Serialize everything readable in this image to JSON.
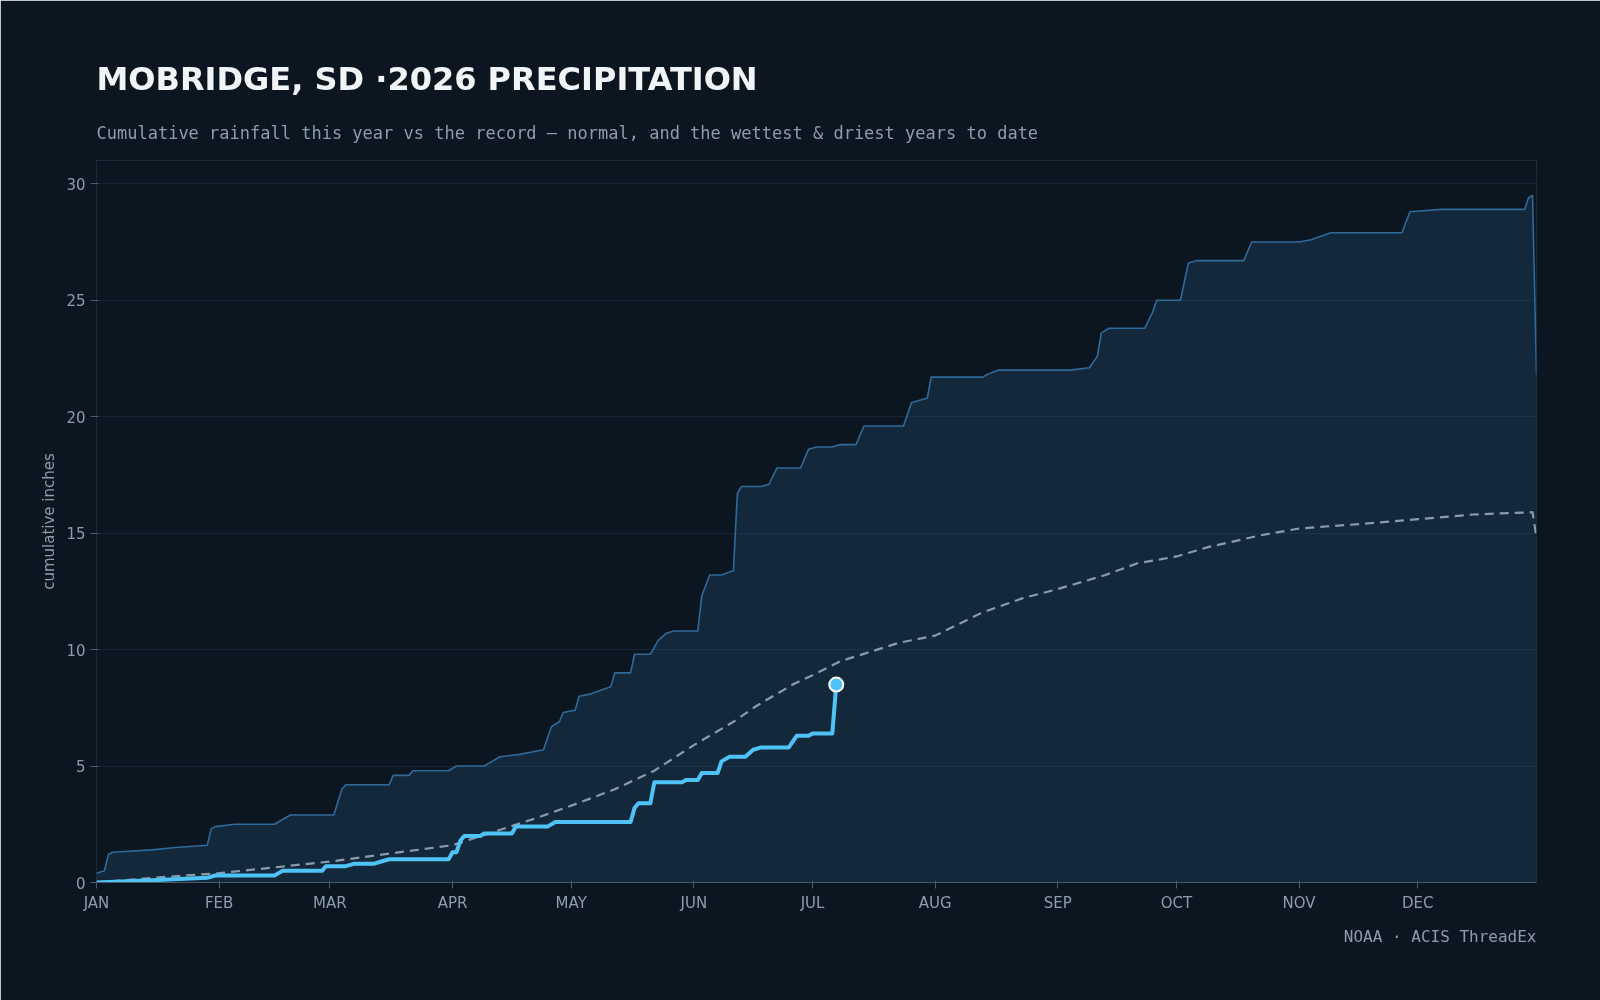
{
  "chart_data": {
    "type": "line",
    "title": "MOBRIDGE, SD ·2026 PRECIPITATION",
    "subtitle": "Cumulative rainfall this year vs the record — normal, and the wettest & driest years to date",
    "ylabel": "cumulative inches",
    "annotations": [
      "NOAA · ACIS ThreadEx"
    ],
    "xlim": [
      "2026-01-01",
      "2026-12-31"
    ],
    "xticks": [
      {
        "value": "2026-01-01",
        "label": "JAN"
      },
      {
        "value": "2026-02-01",
        "label": "FEB"
      },
      {
        "value": "2026-03-01",
        "label": "MAR"
      },
      {
        "value": "2026-04-01",
        "label": "APR"
      },
      {
        "value": "2026-05-01",
        "label": "MAY"
      },
      {
        "value": "2026-06-01",
        "label": "JUN"
      },
      {
        "value": "2026-07-01",
        "label": "JUL"
      },
      {
        "value": "2026-08-01",
        "label": "AUG"
      },
      {
        "value": "2026-09-01",
        "label": "SEP"
      },
      {
        "value": "2026-10-01",
        "label": "OCT"
      },
      {
        "value": "2026-11-01",
        "label": "NOV"
      },
      {
        "value": "2026-12-01",
        "label": "DEC"
      }
    ],
    "ylim": [
      0,
      31
    ],
    "yticks": [
      0,
      5,
      10,
      15,
      20,
      25,
      30
    ],
    "grid": "y",
    "series": [
      {
        "type": "area",
        "color": "#2e6a9a",
        "x": [
          "2026-01-01",
          "2026-01-03",
          "2026-01-04",
          "2026-01-05",
          "2026-01-15",
          "2026-01-21",
          "2026-01-29",
          "2026-01-30",
          "2026-01-31",
          "2026-02-05",
          "2026-02-15",
          "2026-02-19",
          "2026-03-02",
          "2026-03-04",
          "2026-03-05",
          "2026-03-16",
          "2026-03-17",
          "2026-03-21",
          "2026-03-22",
          "2026-03-31",
          "2026-04-02",
          "2026-04-09",
          "2026-04-11",
          "2026-04-13",
          "2026-04-18",
          "2026-04-21",
          "2026-04-24",
          "2026-04-26",
          "2026-04-28",
          "2026-04-29",
          "2026-05-02",
          "2026-05-03",
          "2026-05-06",
          "2026-05-11",
          "2026-05-12",
          "2026-05-16",
          "2026-05-17",
          "2026-05-21",
          "2026-05-23",
          "2026-05-25",
          "2026-05-27",
          "2026-06-02",
          "2026-06-03",
          "2026-06-05",
          "2026-06-08",
          "2026-06-11",
          "2026-06-12",
          "2026-06-13",
          "2026-06-18",
          "2026-06-20",
          "2026-06-22",
          "2026-06-28",
          "2026-06-30",
          "2026-07-02",
          "2026-07-06",
          "2026-07-08",
          "2026-07-12",
          "2026-07-14",
          "2026-07-24",
          "2026-07-26",
          "2026-07-30",
          "2026-07-31",
          "2026-08-13",
          "2026-08-14",
          "2026-08-17",
          "2026-09-04",
          "2026-09-09",
          "2026-09-11",
          "2026-09-12",
          "2026-09-14",
          "2026-09-23",
          "2026-09-25",
          "2026-09-26",
          "2026-10-02",
          "2026-10-04",
          "2026-10-06",
          "2026-10-18",
          "2026-10-20",
          "2026-11-01",
          "2026-11-04",
          "2026-11-09",
          "2026-11-27",
          "2026-11-29",
          "2026-12-07",
          "2026-12-28",
          "2026-12-29",
          "2026-12-30",
          "2026-12-31"
        ],
        "values": [
          0.4,
          0.5,
          1.2,
          1.3,
          1.4,
          1.5,
          1.6,
          2.3,
          2.4,
          2.5,
          2.5,
          2.9,
          2.9,
          4.0,
          4.2,
          4.2,
          4.6,
          4.6,
          4.8,
          4.8,
          5.0,
          5.0,
          5.2,
          5.4,
          5.5,
          5.6,
          5.7,
          6.7,
          6.9,
          7.3,
          7.4,
          8.0,
          8.1,
          8.4,
          9.0,
          9.0,
          9.8,
          9.8,
          10.4,
          10.7,
          10.8,
          10.8,
          12.3,
          13.2,
          13.2,
          13.4,
          16.7,
          17.0,
          17.0,
          17.1,
          17.8,
          17.8,
          18.6,
          18.7,
          18.7,
          18.8,
          18.8,
          19.6,
          19.6,
          20.6,
          20.8,
          21.7,
          21.7,
          21.8,
          22.0,
          22.0,
          22.1,
          22.6,
          23.6,
          23.8,
          23.8,
          24.5,
          25.0,
          25.0,
          26.6,
          26.7,
          26.7,
          27.5,
          27.5,
          27.6,
          27.9,
          27.9,
          28.8,
          28.9,
          28.9,
          29.4,
          29.5,
          21.8
        ]
      },
      {
        "color": "#8a9bab",
        "line_style": "dashed",
        "x": [
          "2026-01-01",
          "2026-01-15",
          "2026-02-01",
          "2026-03-01",
          "2026-04-01",
          "2026-04-21",
          "2026-05-01",
          "2026-05-12",
          "2026-05-22",
          "2026-06-01",
          "2026-06-11",
          "2026-06-17",
          "2026-06-26",
          "2026-07-01",
          "2026-07-08",
          "2026-07-23",
          "2026-08-01",
          "2026-08-13",
          "2026-08-23",
          "2026-09-01",
          "2026-09-13",
          "2026-09-21",
          "2026-10-01",
          "2026-10-09",
          "2026-10-22",
          "2026-11-01",
          "2026-11-17",
          "2026-12-01",
          "2026-12-15",
          "2026-12-30",
          "2026-12-31"
        ],
        "values": [
          0,
          0.2,
          0.4,
          0.9,
          1.6,
          2.7,
          3.3,
          4.0,
          4.8,
          5.9,
          6.9,
          7.6,
          8.5,
          8.9,
          9.5,
          10.3,
          10.6,
          11.6,
          12.2,
          12.6,
          13.2,
          13.7,
          14.0,
          14.4,
          14.9,
          15.2,
          15.4,
          15.6,
          15.8,
          15.9,
          14.8
        ]
      },
      {
        "color": "#4fc3f7",
        "line_style": "solid",
        "x": [
          "2026-01-01",
          "2026-01-15",
          "2026-01-29",
          "2026-01-31",
          "2026-02-15",
          "2026-02-17",
          "2026-02-27",
          "2026-02-28",
          "2026-03-05",
          "2026-03-07",
          "2026-03-12",
          "2026-03-14",
          "2026-03-16",
          "2026-03-31",
          "2026-04-01",
          "2026-04-02",
          "2026-04-03",
          "2026-04-04",
          "2026-04-08",
          "2026-04-09",
          "2026-04-16",
          "2026-04-17",
          "2026-04-25",
          "2026-04-27",
          "2026-05-16",
          "2026-05-17",
          "2026-05-18",
          "2026-05-21",
          "2026-05-22",
          "2026-05-29",
          "2026-05-30",
          "2026-06-02",
          "2026-06-03",
          "2026-06-07",
          "2026-06-08",
          "2026-06-10",
          "2026-06-14",
          "2026-06-16",
          "2026-06-18",
          "2026-06-25",
          "2026-06-27",
          "2026-06-30",
          "2026-07-01",
          "2026-07-06",
          "2026-07-07"
        ],
        "values": [
          0,
          0.1,
          0.2,
          0.3,
          0.3,
          0.5,
          0.5,
          0.7,
          0.7,
          0.8,
          0.8,
          0.9,
          1.0,
          1.0,
          1.3,
          1.3,
          1.8,
          2.0,
          2.0,
          2.1,
          2.1,
          2.4,
          2.4,
          2.6,
          2.6,
          3.2,
          3.4,
          3.4,
          4.3,
          4.3,
          4.4,
          4.4,
          4.7,
          4.7,
          5.2,
          5.4,
          5.4,
          5.7,
          5.8,
          5.8,
          6.3,
          6.3,
          6.4,
          6.4,
          8.5
        ]
      },
      {
        "type": "scatter",
        "color": "#4fc3f7",
        "marker": "circle",
        "x": [
          "2026-07-07"
        ],
        "values": [
          8.5
        ]
      }
    ]
  }
}
